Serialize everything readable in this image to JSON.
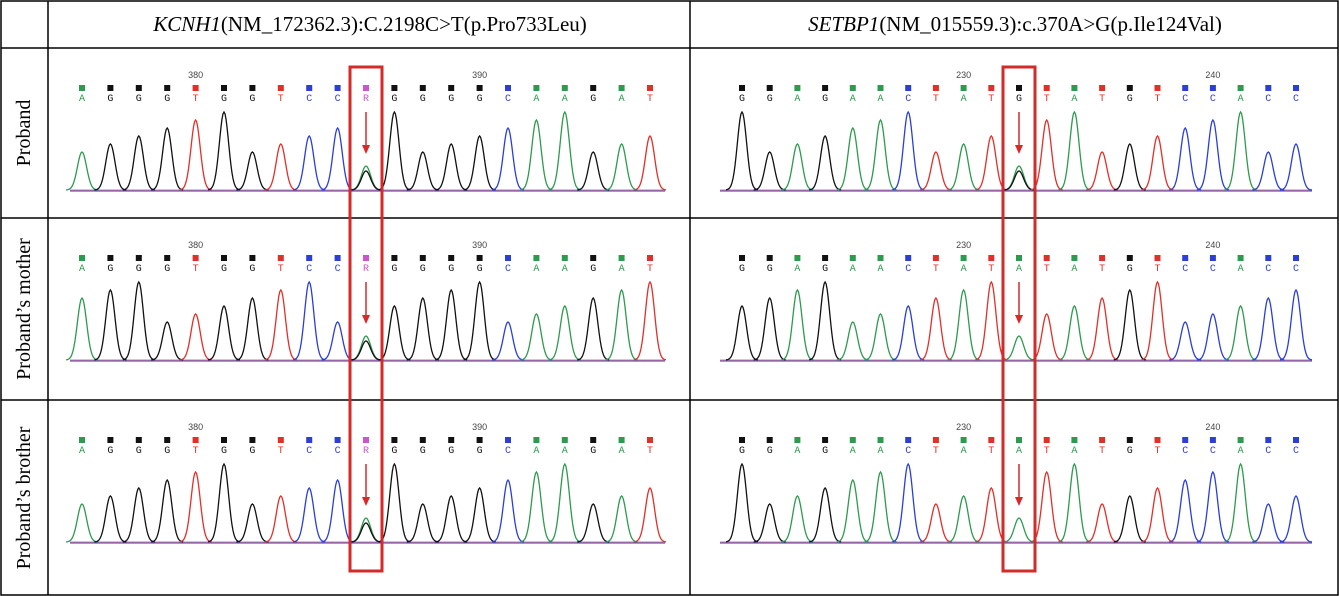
{
  "header": {
    "columns": [
      {
        "gene": "KCNH1",
        "variant": "(NM_172362.3):C.2198C>T(p.Pro733Leu)"
      },
      {
        "gene": "SETBP1",
        "variant": "(NM_015559.3):c.370A>G(p.Ile124Val)"
      }
    ]
  },
  "rows": [
    {
      "label": "Proband",
      "tracks": [
        {
          "bases": [
            "A",
            "G",
            "G",
            "G",
            "T",
            "G",
            "G",
            "T",
            "C",
            "C",
            "R",
            "G",
            "G",
            "G",
            "G",
            "C",
            "A",
            "A",
            "G",
            "A",
            "T"
          ],
          "positions": [
            null,
            null,
            null,
            null,
            "380",
            null,
            null,
            null,
            null,
            null,
            null,
            null,
            null,
            null,
            "390",
            null,
            null,
            null,
            null,
            null,
            null
          ]
        },
        {
          "bases": [
            "G",
            "G",
            "A",
            "G",
            "A",
            "A",
            "C",
            "T",
            "A",
            "T",
            "G",
            "T",
            "A",
            "T",
            "G",
            "T",
            "C",
            "C",
            "A",
            "C",
            "C"
          ],
          "positions": [
            null,
            null,
            null,
            null,
            null,
            null,
            null,
            null,
            "230",
            null,
            null,
            null,
            null,
            null,
            null,
            null,
            null,
            "240",
            null,
            null,
            null
          ]
        }
      ]
    },
    {
      "label": "Proband’s mother",
      "tracks": [
        {
          "bases": [
            "A",
            "G",
            "G",
            "G",
            "T",
            "G",
            "G",
            "T",
            "C",
            "C",
            "R",
            "G",
            "G",
            "G",
            "G",
            "C",
            "A",
            "A",
            "G",
            "A",
            "T"
          ],
          "positions": [
            null,
            null,
            null,
            null,
            "380",
            null,
            null,
            null,
            null,
            null,
            null,
            null,
            null,
            null,
            "390",
            null,
            null,
            null,
            null,
            null,
            null
          ]
        },
        {
          "bases": [
            "G",
            "G",
            "A",
            "G",
            "A",
            "A",
            "C",
            "T",
            "A",
            "T",
            "A",
            "T",
            "A",
            "T",
            "G",
            "T",
            "C",
            "C",
            "A",
            "C",
            "C"
          ],
          "positions": [
            null,
            null,
            null,
            null,
            null,
            null,
            null,
            null,
            "230",
            null,
            null,
            null,
            null,
            null,
            null,
            null,
            null,
            "240",
            null,
            null,
            null
          ]
        }
      ]
    },
    {
      "label": "Proband’s brother",
      "tracks": [
        {
          "bases": [
            "A",
            "G",
            "G",
            "G",
            "T",
            "G",
            "G",
            "T",
            "C",
            "C",
            "R",
            "G",
            "G",
            "G",
            "G",
            "C",
            "A",
            "A",
            "G",
            "A",
            "T"
          ],
          "positions": [
            null,
            null,
            null,
            null,
            "380",
            null,
            null,
            null,
            null,
            null,
            null,
            null,
            null,
            null,
            "390",
            null,
            null,
            null,
            null,
            null,
            null
          ]
        },
        {
          "bases": [
            "G",
            "G",
            "A",
            "G",
            "A",
            "A",
            "C",
            "T",
            "A",
            "T",
            "A",
            "T",
            "A",
            "T",
            "G",
            "T",
            "C",
            "C",
            "A",
            "C",
            "C"
          ],
          "positions": [
            null,
            null,
            null,
            null,
            null,
            null,
            null,
            null,
            "230",
            null,
            null,
            null,
            null,
            null,
            null,
            null,
            null,
            "240",
            null,
            null,
            null
          ]
        }
      ]
    }
  ]
}
